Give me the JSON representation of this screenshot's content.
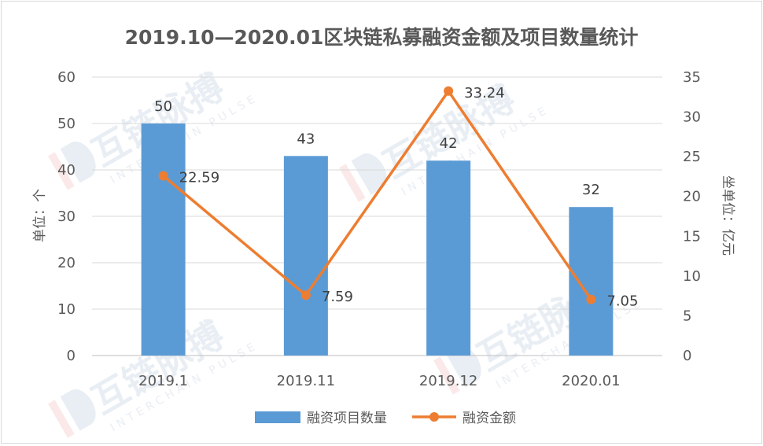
{
  "chart_data": {
    "type": "bar",
    "title": "2019.10—2020.01区块链私募融资金额及项目数量统计",
    "categories": [
      "2019.1",
      "2019.11",
      "2019.12",
      "2020.01"
    ],
    "series": [
      {
        "name": "融资项目数量",
        "type": "bar",
        "axis": "left",
        "values": [
          50,
          43,
          42,
          32
        ],
        "color": "#5b9bd5"
      },
      {
        "name": "融资金额",
        "type": "line",
        "axis": "right",
        "values": [
          22.59,
          7.59,
          33.24,
          7.05
        ],
        "color": "#ed7d31"
      }
    ],
    "y_left": {
      "label": "单位：个",
      "min": 0,
      "max": 60,
      "step": 10
    },
    "y_right": {
      "label": "坐单位：亿元",
      "min": 0,
      "max": 35,
      "step": 5
    },
    "grid": true,
    "legend_position": "bottom"
  },
  "watermark": {
    "brand": "互链脉搏",
    "sub": "INTERCHAIN PULSE"
  }
}
